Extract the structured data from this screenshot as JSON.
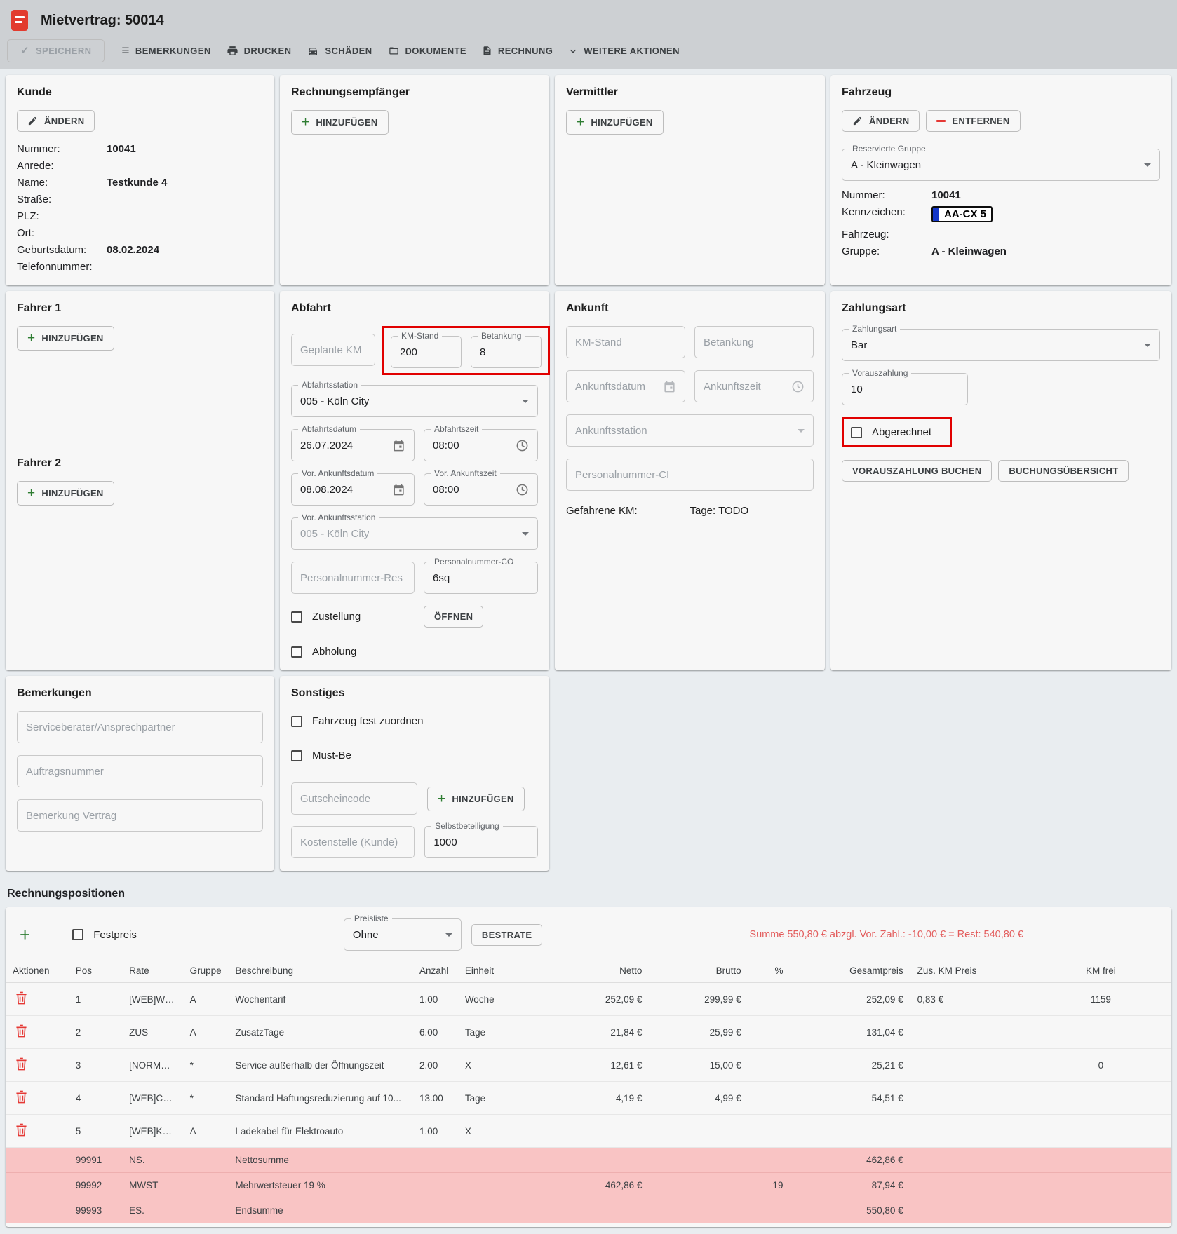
{
  "icons": {
    "check": "✓",
    "list_menu": "≡",
    "plus": "+"
  },
  "colors": {
    "accent_red": "#e23b2e",
    "highlight_red": "#e10000",
    "summary_pink": "#f9c4c4",
    "summary_text_red": "#e35d5d",
    "plus_green": "#2e7d32",
    "plate_blue": "#1437c9",
    "topbar_gray": "#cdd0d3",
    "page_bg": "#e9edf0",
    "card_bg": "#f7f7f7"
  },
  "header": {
    "title": "Mietvertrag: 50014"
  },
  "toolbar": {
    "speichern": "SPEICHERN",
    "bemerkungen": "BEMERKUNGEN",
    "drucken": "DRUCKEN",
    "schaeden": "SCHÄDEN",
    "dokumente": "DOKUMENTE",
    "rechnung": "RECHNUNG",
    "weitere_aktionen": "WEITERE AKTIONEN"
  },
  "kunde": {
    "title": "Kunde",
    "aendern": "ÄNDERN",
    "fields": [
      {
        "label": "Nummer:",
        "value": "10041"
      },
      {
        "label": "Anrede:",
        "value": ""
      },
      {
        "label": "Name:",
        "value": "Testkunde 4"
      },
      {
        "label": "Straße:",
        "value": ""
      },
      {
        "label": "PLZ:",
        "value": ""
      },
      {
        "label": "Ort:",
        "value": ""
      },
      {
        "label": "Geburtsdatum:",
        "value": "08.02.2024"
      },
      {
        "label": "Telefonnummer:",
        "value": ""
      }
    ]
  },
  "rechnungsempfaenger": {
    "title": "Rechnungsempfänger",
    "hinzufuegen": "HINZUFÜGEN"
  },
  "vermittler": {
    "title": "Vermittler",
    "hinzufuegen": "HINZUFÜGEN"
  },
  "fahrzeug": {
    "title": "Fahrzeug",
    "aendern": "ÄNDERN",
    "entfernen": "ENTFERNEN",
    "reservierte_gruppe_label": "Reservierte Gruppe",
    "reservierte_gruppe": "A - Kleinwagen",
    "fields": [
      {
        "label": "Nummer:",
        "value": "10041"
      },
      {
        "label": "Kennzeichen:",
        "value": "AA-CX 5",
        "plate": true
      },
      {
        "label": "Fahrzeug:",
        "value": ""
      },
      {
        "label": "Gruppe:",
        "value": "A - Kleinwagen"
      }
    ]
  },
  "fahrer": {
    "fahrer1_title": "Fahrer 1",
    "fahrer2_title": "Fahrer 2",
    "hinzufuegen": "HINZUFÜGEN"
  },
  "abfahrt": {
    "title": "Abfahrt",
    "geplante_km_placeholder": "Geplante KM",
    "km_stand_label": "KM-Stand",
    "km_stand": "200",
    "betankung_label": "Betankung",
    "betankung": "8",
    "abfahrtsstation_label": "Abfahrtsstation",
    "abfahrtsstation": "005 - Köln City",
    "abfahrtsdatum_label": "Abfahrtsdatum",
    "abfahrtsdatum": "26.07.2024",
    "abfahrtszeit_label": "Abfahrtszeit",
    "abfahrtszeit": "08:00",
    "vor_ankunftsdatum_label": "Vor. Ankunftsdatum",
    "vor_ankunftsdatum": "08.08.2024",
    "vor_ankunftszeit_label": "Vor. Ankunftszeit",
    "vor_ankunftszeit": "08:00",
    "vor_ankunftsstation_label": "Vor. Ankunftsstation",
    "vor_ankunftsstation": "005 - Köln City",
    "personalnummer_res_placeholder": "Personalnummer-Res",
    "personalnummer_co_label": "Personalnummer-CO",
    "personalnummer_co": "6sq",
    "oeffnen": "ÖFFNEN",
    "zustellung": "Zustellung",
    "abholung": "Abholung"
  },
  "ankunft": {
    "title": "Ankunft",
    "km_stand_placeholder": "KM-Stand",
    "betankung_placeholder": "Betankung",
    "ankunftsdatum_placeholder": "Ankunftsdatum",
    "ankunftszeit_placeholder": "Ankunftszeit",
    "ankunftsstation_placeholder": "Ankunftsstation",
    "personalnummer_ci_placeholder": "Personalnummer-CI",
    "gefahrene_km_label": "Gefahrene KM:",
    "tage_label": "Tage: TODO"
  },
  "zahlungsart": {
    "title": "Zahlungsart",
    "zahlungsart_label": "Zahlungsart",
    "zahlungsart": "Bar",
    "vorauszahlung_label": "Vorauszahlung",
    "vorauszahlung": "10",
    "abgerechnet": "Abgerechnet",
    "vorauszahlung_buchen": "VORAUSZAHLUNG BUCHEN",
    "buchungsuebersicht": "BUCHUNGSÜBERSICHT"
  },
  "bemerkungen": {
    "title": "Bemerkungen",
    "placeholders": [
      "Serviceberater/Ansprechpartner",
      "Auftragsnummer",
      "Bemerkung Vertrag"
    ]
  },
  "sonstiges": {
    "title": "Sonstiges",
    "fahrzeug_fest": "Fahrzeug fest zuordnen",
    "must_be": "Must-Be",
    "gutscheincode_placeholder": "Gutscheincode",
    "hinzufuegen": "HINZUFÜGEN",
    "kostenstelle_placeholder": "Kostenstelle (Kunde)",
    "selbstbeteiligung_label": "Selbstbeteiligung",
    "selbstbeteiligung": "1000"
  },
  "table": {
    "title": "Rechnungspositionen",
    "festpreis": "Festpreis",
    "preisliste_label": "Preisliste",
    "preisliste": "Ohne",
    "bestrate": "BESTRATE",
    "summe_text": "Summe 550,80 € abzgl. Vor. Zahl.: -10,00 € = Rest: 540,80 €",
    "columns": [
      "Aktionen",
      "Pos",
      "Rate",
      "Gruppe",
      "Beschreibung",
      "Anzahl",
      "Einheit",
      "Netto",
      "Brutto",
      "%",
      "Gesamtpreis",
      "Zus. KM Preis",
      "KM frei"
    ],
    "rows": [
      {
        "pos": "1",
        "rate": "[WEB]WO...",
        "gruppe": "A",
        "beschreibung": "Wochentarif",
        "anzahl": "1.00",
        "einheit": "Woche",
        "netto": "252,09 €",
        "brutto": "299,99 €",
        "pct": "",
        "gesamtpreis": "252,09 €",
        "zus_km_preis": "0,83 €",
        "km_frei": "1159"
      },
      {
        "pos": "2",
        "rate": "ZUS",
        "gruppe": "A",
        "beschreibung": "ZusatzTage",
        "anzahl": "6.00",
        "einheit": "Tage",
        "netto": "21,84 €",
        "brutto": "25,99 €",
        "pct": "",
        "gesamtpreis": "131,04 €",
        "zus_km_preis": "",
        "km_frei": ""
      },
      {
        "pos": "3",
        "rate": "[NORMAL...",
        "gruppe": "*",
        "beschreibung": "Service außerhalb der Öffnungszeit",
        "anzahl": "2.00",
        "einheit": "X",
        "netto": "12,61 €",
        "brutto": "15,00 €",
        "pct": "",
        "gesamtpreis": "25,21 €",
        "zus_km_preis": "",
        "km_frei": "0"
      },
      {
        "pos": "4",
        "rate": "[WEB]CD...",
        "gruppe": "*",
        "beschreibung": "Standard Haftungsreduzierung auf 10...",
        "anzahl": "13.00",
        "einheit": "Tage",
        "netto": "4,19 €",
        "brutto": "4,99 €",
        "pct": "",
        "gesamtpreis": "54,51 €",
        "zus_km_preis": "",
        "km_frei": ""
      },
      {
        "pos": "5",
        "rate": "[WEB]KA...",
        "gruppe": "A",
        "beschreibung": "Ladekabel für Elektroauto",
        "anzahl": "1.00",
        "einheit": "X",
        "netto": "",
        "brutto": "",
        "pct": "",
        "gesamtpreis": "",
        "zus_km_preis": "",
        "km_frei": ""
      }
    ],
    "summary_rows": [
      {
        "pos": "99991",
        "rate": "NS.",
        "gruppe": "",
        "beschreibung": "Nettosumme",
        "anzahl": "",
        "einheit": "",
        "netto": "",
        "brutto": "",
        "pct": "",
        "gesamtpreis": "462,86 €",
        "zus_km_preis": "",
        "km_frei": ""
      },
      {
        "pos": "99992",
        "rate": "MWST",
        "gruppe": "",
        "beschreibung": "Mehrwertsteuer 19 %",
        "anzahl": "",
        "einheit": "",
        "netto": "462,86 €",
        "brutto": "",
        "pct": "19",
        "gesamtpreis": "87,94 €",
        "zus_km_preis": "",
        "km_frei": ""
      },
      {
        "pos": "99993",
        "rate": "ES.",
        "gruppe": "",
        "beschreibung": "Endsumme",
        "anzahl": "",
        "einheit": "",
        "netto": "",
        "brutto": "",
        "pct": "",
        "gesamtpreis": "550,80 €",
        "zus_km_preis": "",
        "km_frei": ""
      }
    ]
  }
}
